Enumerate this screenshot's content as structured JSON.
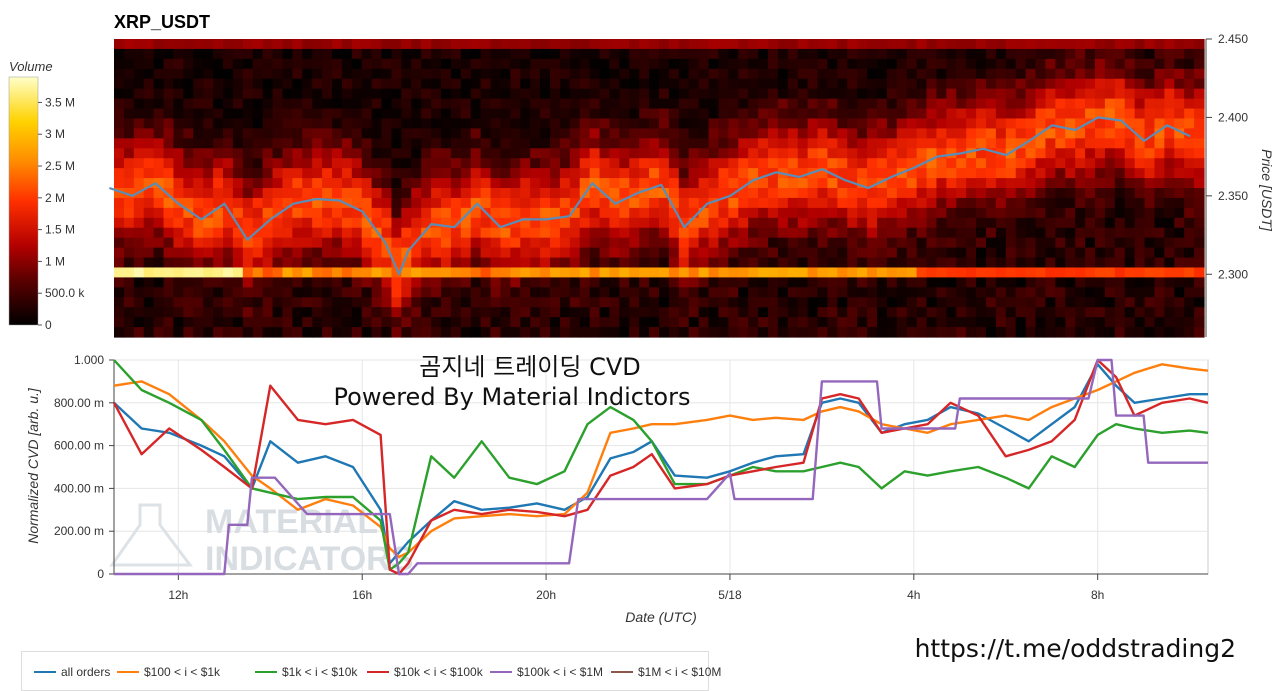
{
  "chart_data": [
    {
      "type": "heatmap",
      "title": "XRP_USDT",
      "ylabel": "Price [USDT]",
      "ylim": [
        2.26,
        2.45
      ],
      "yticks": [
        "2.300",
        "2.350",
        "2.400",
        "2.450"
      ],
      "colorbar": {
        "label": "Volume",
        "range": [
          0,
          3900000
        ],
        "ticks": [
          "0",
          "500.0 k",
          "1 M",
          "1.5 M",
          "2 M",
          "2.5 M",
          "3 M",
          "3.5 M"
        ]
      },
      "price_series": {
        "color": "#5b8db8",
        "x_hours": [
          10.5,
          11.0,
          11.5,
          12.0,
          12.5,
          13.0,
          13.5,
          14.0,
          14.5,
          15.0,
          15.5,
          16.0,
          16.5,
          16.8,
          17.0,
          17.5,
          18.0,
          18.5,
          19.0,
          19.5,
          20.0,
          20.5,
          21.0,
          21.5,
          22.0,
          22.5,
          23.0,
          23.5,
          24.0,
          24.5,
          25.0,
          25.5,
          26.0,
          26.5,
          27.0,
          27.5,
          28.0,
          28.5,
          29.0,
          29.5,
          30.0,
          30.5,
          31.0,
          31.5,
          32.0,
          32.5,
          33.0,
          33.5,
          34.0
        ],
        "price": [
          2.355,
          2.35,
          2.358,
          2.345,
          2.335,
          2.345,
          2.322,
          2.335,
          2.345,
          2.348,
          2.347,
          2.34,
          2.32,
          2.3,
          2.315,
          2.332,
          2.33,
          2.345,
          2.33,
          2.335,
          2.335,
          2.337,
          2.358,
          2.345,
          2.352,
          2.357,
          2.33,
          2.345,
          2.35,
          2.36,
          2.365,
          2.362,
          2.367,
          2.36,
          2.355,
          2.362,
          2.368,
          2.375,
          2.377,
          2.38,
          2.376,
          2.385,
          2.395,
          2.392,
          2.4,
          2.398,
          2.385,
          2.395,
          2.388
        ]
      }
    },
    {
      "type": "line",
      "title": "",
      "xlabel": "Date (UTC)",
      "ylabel": "Normalized CVD [arb. u.]",
      "ylim": [
        0,
        1
      ],
      "xlim_hours": [
        10.6,
        34.4
      ],
      "x_ticks": [
        {
          "h": 12,
          "label": "12h"
        },
        {
          "h": 16,
          "label": "16h"
        },
        {
          "h": 20,
          "label": "20h"
        },
        {
          "h": 24,
          "label": "5/18"
        },
        {
          "h": 28,
          "label": "4h"
        },
        {
          "h": 32,
          "label": "8h"
        }
      ],
      "y_ticks": [
        {
          "v": 0,
          "label": "0"
        },
        {
          "v": 0.2,
          "label": "200.00 m"
        },
        {
          "v": 0.4,
          "label": "400.00 m"
        },
        {
          "v": 0.6,
          "label": "600.00 m"
        },
        {
          "v": 0.8,
          "label": "800.00 m"
        },
        {
          "v": 1.0,
          "label": "1.000"
        }
      ],
      "series": [
        {
          "name": "all orders",
          "color": "#1f77b4",
          "x": [
            10.6,
            11.2,
            11.8,
            12.5,
            13.0,
            13.6,
            14.0,
            14.6,
            15.2,
            15.8,
            16.4,
            16.6,
            16.8,
            17.0,
            17.5,
            18.0,
            18.6,
            19.2,
            19.8,
            20.4,
            20.9,
            21.4,
            21.9,
            22.3,
            22.8,
            23.5,
            24.0,
            24.5,
            25.0,
            25.6,
            26.0,
            26.4,
            26.8,
            27.3,
            27.8,
            28.3,
            28.8,
            29.4,
            30.0,
            30.5,
            31.0,
            31.5,
            32.0,
            32.4,
            32.8,
            33.4,
            34.0,
            34.4
          ],
          "y": [
            0.8,
            0.68,
            0.66,
            0.6,
            0.55,
            0.4,
            0.62,
            0.52,
            0.55,
            0.5,
            0.3,
            0.05,
            0.1,
            0.15,
            0.25,
            0.34,
            0.3,
            0.31,
            0.33,
            0.3,
            0.36,
            0.54,
            0.57,
            0.62,
            0.46,
            0.45,
            0.48,
            0.52,
            0.55,
            0.56,
            0.8,
            0.82,
            0.8,
            0.66,
            0.7,
            0.72,
            0.78,
            0.75,
            0.68,
            0.62,
            0.7,
            0.78,
            0.98,
            0.88,
            0.8,
            0.82,
            0.84,
            0.84
          ]
        },
        {
          "name": "$100 < i < $1k",
          "color": "#ff7f0e",
          "x": [
            10.6,
            11.2,
            11.8,
            12.5,
            13.0,
            13.6,
            14.0,
            14.6,
            15.2,
            15.8,
            16.4,
            16.6,
            16.8,
            17.0,
            17.5,
            18.0,
            18.6,
            19.2,
            19.8,
            20.4,
            20.9,
            21.4,
            21.9,
            22.3,
            22.8,
            23.5,
            24.0,
            24.5,
            25.0,
            25.6,
            26.0,
            26.4,
            26.8,
            27.3,
            27.8,
            28.3,
            28.8,
            29.4,
            30.0,
            30.5,
            31.0,
            31.5,
            32.0,
            32.4,
            32.8,
            33.4,
            34.0,
            34.4
          ],
          "y": [
            0.88,
            0.9,
            0.84,
            0.72,
            0.62,
            0.46,
            0.4,
            0.3,
            0.35,
            0.32,
            0.22,
            0.12,
            0.08,
            0.1,
            0.2,
            0.26,
            0.27,
            0.28,
            0.27,
            0.28,
            0.38,
            0.66,
            0.68,
            0.7,
            0.7,
            0.72,
            0.74,
            0.72,
            0.73,
            0.72,
            0.76,
            0.78,
            0.76,
            0.7,
            0.68,
            0.66,
            0.7,
            0.72,
            0.74,
            0.72,
            0.78,
            0.82,
            0.86,
            0.9,
            0.94,
            0.98,
            0.96,
            0.95
          ]
        },
        {
          "name": "$1k < i < $10k",
          "color": "#2ca02c",
          "x": [
            10.6,
            11.2,
            11.8,
            12.5,
            13.0,
            13.6,
            14.0,
            14.6,
            15.2,
            15.8,
            16.4,
            16.6,
            16.8,
            17.0,
            17.5,
            18.0,
            18.6,
            19.2,
            19.8,
            20.4,
            20.9,
            21.4,
            21.9,
            22.3,
            22.8,
            23.5,
            24.0,
            24.5,
            25.0,
            25.6,
            26.0,
            26.4,
            26.8,
            27.3,
            27.8,
            28.3,
            28.8,
            29.4,
            30.0,
            30.5,
            31.0,
            31.5,
            32.0,
            32.4,
            32.8,
            33.4,
            34.0,
            34.4
          ],
          "y": [
            1.0,
            0.86,
            0.8,
            0.72,
            0.58,
            0.4,
            0.38,
            0.35,
            0.36,
            0.36,
            0.25,
            0.02,
            0.05,
            0.1,
            0.55,
            0.45,
            0.62,
            0.45,
            0.42,
            0.48,
            0.7,
            0.78,
            0.72,
            0.62,
            0.42,
            0.42,
            0.46,
            0.5,
            0.48,
            0.48,
            0.5,
            0.52,
            0.5,
            0.4,
            0.48,
            0.46,
            0.48,
            0.5,
            0.45,
            0.4,
            0.55,
            0.5,
            0.65,
            0.7,
            0.68,
            0.66,
            0.67,
            0.66
          ]
        },
        {
          "name": "$10k < i < $100k",
          "color": "#d62728",
          "x": [
            10.6,
            11.2,
            11.8,
            12.5,
            13.0,
            13.6,
            14.0,
            14.6,
            15.2,
            15.8,
            16.4,
            16.6,
            16.8,
            17.0,
            17.5,
            18.0,
            18.6,
            19.2,
            19.8,
            20.4,
            20.9,
            21.4,
            21.9,
            22.3,
            22.8,
            23.5,
            24.0,
            24.5,
            25.0,
            25.6,
            26.0,
            26.4,
            26.8,
            27.3,
            27.8,
            28.3,
            28.8,
            29.4,
            30.0,
            30.5,
            31.0,
            31.5,
            32.0,
            32.4,
            32.8,
            33.4,
            34.0,
            34.4
          ],
          "y": [
            0.8,
            0.56,
            0.68,
            0.58,
            0.5,
            0.4,
            0.88,
            0.72,
            0.7,
            0.72,
            0.65,
            0.02,
            0.0,
            0.05,
            0.25,
            0.3,
            0.28,
            0.3,
            0.29,
            0.27,
            0.3,
            0.46,
            0.5,
            0.56,
            0.4,
            0.42,
            0.46,
            0.48,
            0.5,
            0.52,
            0.82,
            0.84,
            0.82,
            0.66,
            0.68,
            0.7,
            0.8,
            0.74,
            0.55,
            0.58,
            0.62,
            0.72,
            1.0,
            0.92,
            0.74,
            0.8,
            0.82,
            0.8
          ]
        },
        {
          "name": "$100k < i < $1M",
          "color": "#9467bd",
          "x": [
            10.6,
            12.0,
            13.0,
            13.1,
            13.5,
            13.6,
            14.1,
            14.8,
            15.0,
            15.1,
            16.6,
            16.8,
            17.0,
            17.2,
            18.0,
            20.5,
            20.7,
            20.8,
            22.0,
            23.4,
            23.5,
            24.0,
            24.1,
            25.8,
            26.0,
            26.1,
            27.2,
            27.3,
            28.0,
            28.9,
            29.0,
            30.0,
            31.8,
            32.0,
            32.3,
            32.4,
            33.0,
            33.1,
            34.4
          ],
          "y": [
            0.0,
            0.0,
            0.0,
            0.23,
            0.23,
            0.45,
            0.45,
            0.28,
            0.28,
            0.28,
            0.28,
            0.0,
            0.0,
            0.05,
            0.05,
            0.05,
            0.35,
            0.35,
            0.35,
            0.35,
            0.35,
            0.47,
            0.35,
            0.35,
            0.9,
            0.9,
            0.9,
            0.68,
            0.68,
            0.68,
            0.82,
            0.82,
            0.82,
            1.0,
            1.0,
            0.74,
            0.74,
            0.52,
            0.52
          ]
        },
        {
          "name": "$1M < i < $10M",
          "color": "#8c564b",
          "x": [],
          "y": []
        }
      ]
    }
  ],
  "overlay": {
    "line1": "곰지네 트레이딩 CVD",
    "line2": "Powered By Material Indictors",
    "link": "https://t.me/oddstrading2",
    "watermark": "MATERIAL INDICATORS"
  }
}
